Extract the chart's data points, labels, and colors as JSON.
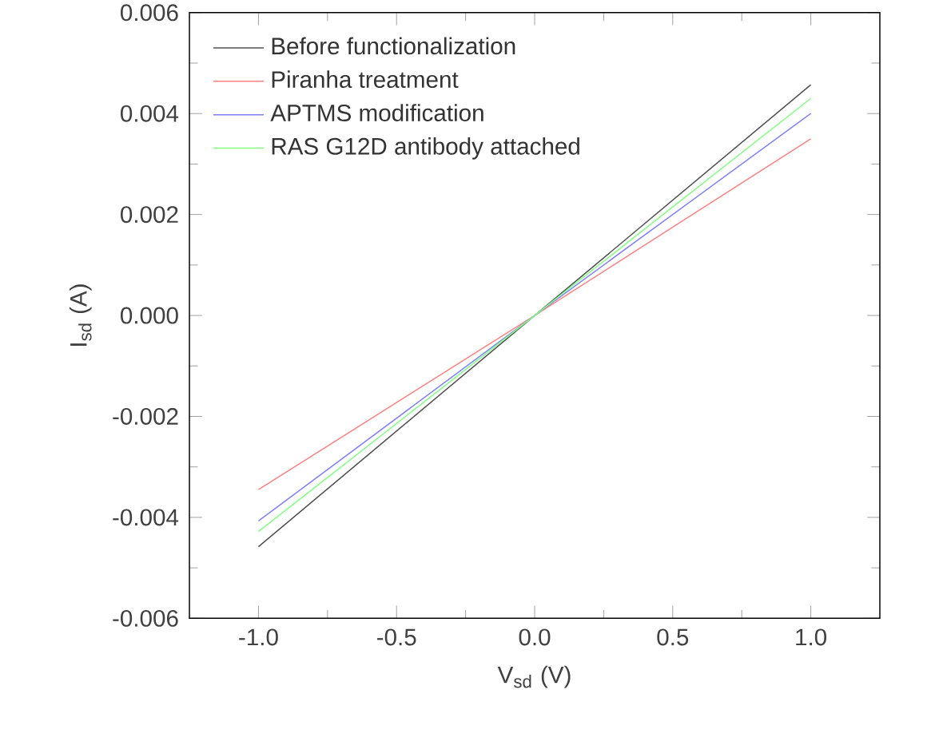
{
  "chart_data": {
    "type": "line",
    "xlabel": "V$_{sd}$ (V)",
    "ylabel": "I$_{sd}$ (A)",
    "xlim": [
      -1.25,
      1.25
    ],
    "xticks": [
      {
        "value": -1,
        "label": "-1.0"
      },
      -0.5,
      {
        "value": 0,
        "label": "0.0"
      },
      0.5,
      {
        "value": 1,
        "label": "1.0"
      }
    ],
    "ylim": [
      -0.006,
      0.006
    ],
    "yticks": [
      -0.006,
      -0.004,
      -0.002,
      {
        "value": 0,
        "label": "0.000"
      },
      0.002,
      0.004,
      0.006
    ],
    "x": [
      -1.0,
      0.0,
      1.0
    ],
    "legend": "top left",
    "grid": false,
    "marker": "none",
    "line_style": "solid",
    "series": [
      {
        "name": "Before functionalization",
        "color": "#505050",
        "values": [
          -0.00458,
          0.0,
          0.00457
        ]
      },
      {
        "name": "Piranha treatment",
        "color": "#ff8080",
        "values": [
          -0.00345,
          0.0,
          0.0035
        ]
      },
      {
        "name": "APTMS modification",
        "color": "#8080ff",
        "values": [
          -0.00407,
          0.0,
          0.004
        ]
      },
      {
        "name": "RAS G12D antibody attached",
        "color": "#80ff80",
        "values": [
          -0.00428,
          0.0,
          0.0043
        ]
      }
    ]
  }
}
